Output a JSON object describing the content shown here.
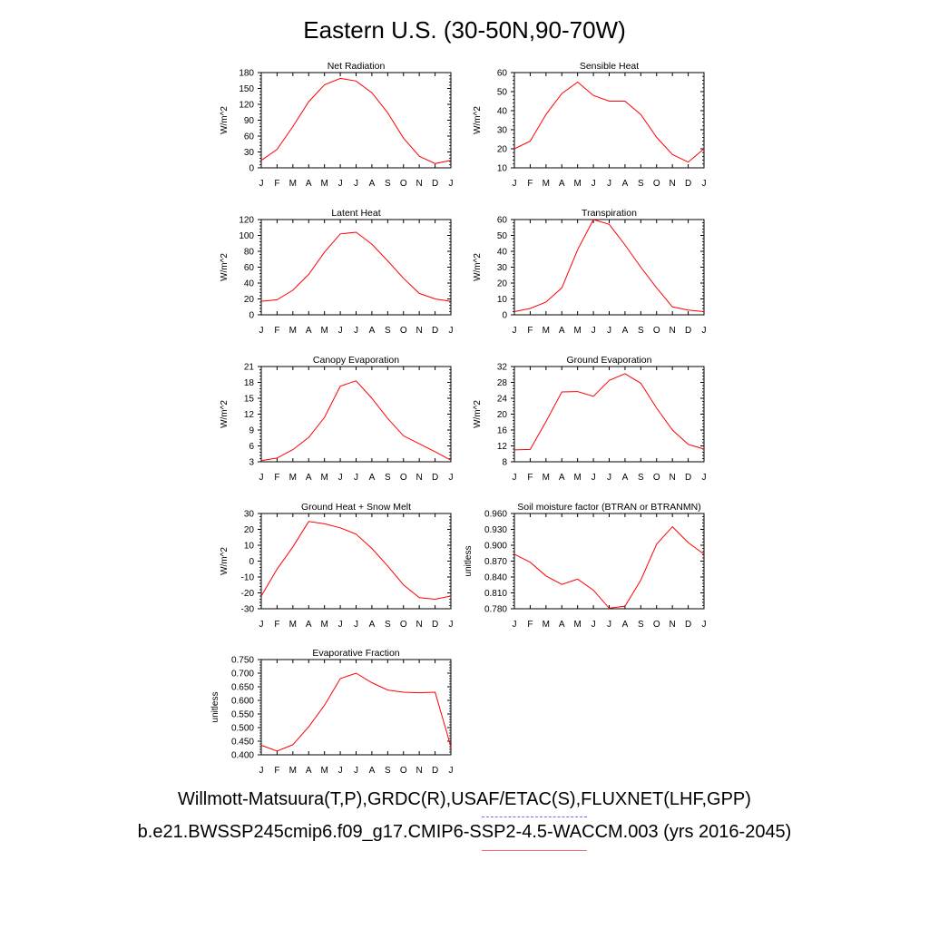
{
  "page": {
    "title": "Eastern U.S. (30-50N,90-70W)",
    "footer_obs": "Willmott-Matsuura(T,P),GRDC(R),USAF/ETAC(S),FLUXNET(LHF,GPP)",
    "footer_model": "b.e21.BWSSP245cmip6.f09_g17.CMIP6-SSP2-4.5-WACCM.003 (yrs 2016-2045)",
    "obs_line_color": "#6b6bff",
    "model_line_color": "#ff6b6b",
    "series_color": "#ff0000"
  },
  "chart_data": [
    {
      "id": "net-radiation",
      "type": "line",
      "title": "Net Radiation",
      "ylabel": "W/m^2",
      "x": [
        "J",
        "F",
        "M",
        "A",
        "M",
        "J",
        "J",
        "A",
        "S",
        "O",
        "N",
        "D",
        "J"
      ],
      "ylim": [
        0,
        180
      ],
      "yticks": [
        "0",
        "30",
        "60",
        "90",
        "120",
        "150",
        "180"
      ],
      "values": [
        14,
        35,
        78,
        125,
        157,
        169,
        164,
        142,
        104,
        56,
        22,
        8,
        14
      ]
    },
    {
      "id": "sensible-heat",
      "type": "line",
      "title": "Sensible Heat",
      "ylabel": "W/m^2",
      "x": [
        "J",
        "F",
        "M",
        "A",
        "M",
        "J",
        "J",
        "A",
        "S",
        "O",
        "N",
        "D",
        "J"
      ],
      "ylim": [
        10,
        60
      ],
      "yticks": [
        "10",
        "20",
        "30",
        "40",
        "50",
        "60"
      ],
      "values": [
        20,
        24,
        38,
        49,
        55,
        48,
        45,
        45,
        38,
        26,
        17,
        13,
        20
      ]
    },
    {
      "id": "latent-heat",
      "type": "line",
      "title": "Latent Heat",
      "ylabel": "W/m^2",
      "x": [
        "J",
        "F",
        "M",
        "A",
        "M",
        "J",
        "J",
        "A",
        "S",
        "O",
        "N",
        "D",
        "J"
      ],
      "ylim": [
        0,
        120
      ],
      "yticks": [
        "0",
        "20",
        "40",
        "60",
        "80",
        "100",
        "120"
      ],
      "values": [
        17,
        19,
        31,
        51,
        79,
        102,
        104,
        89,
        68,
        46,
        27,
        20,
        17
      ]
    },
    {
      "id": "transpiration",
      "type": "line",
      "title": "Transpiration",
      "ylabel": "W/m^2",
      "x": [
        "J",
        "F",
        "M",
        "A",
        "M",
        "J",
        "J",
        "A",
        "S",
        "O",
        "N",
        "D",
        "J"
      ],
      "ylim": [
        0,
        60
      ],
      "yticks": [
        "0",
        "10",
        "20",
        "30",
        "40",
        "50",
        "60"
      ],
      "values": [
        2,
        4,
        8,
        17,
        41,
        60,
        57,
        44,
        30,
        17,
        5,
        3,
        2
      ]
    },
    {
      "id": "canopy-evaporation",
      "type": "line",
      "title": "Canopy Evaporation",
      "ylabel": "W/m^2",
      "x": [
        "J",
        "F",
        "M",
        "A",
        "M",
        "J",
        "J",
        "A",
        "S",
        "O",
        "N",
        "D",
        "J"
      ],
      "ylim": [
        3,
        21
      ],
      "yticks": [
        "3",
        "6",
        "9",
        "12",
        "15",
        "18",
        "21"
      ],
      "values": [
        3.2,
        3.7,
        5.3,
        7.6,
        11.4,
        17.3,
        18.3,
        15.0,
        11.2,
        7.9,
        6.4,
        4.9,
        3.3
      ]
    },
    {
      "id": "ground-evaporation",
      "type": "line",
      "title": "Ground Evaporation",
      "ylabel": "W/m^2",
      "x": [
        "J",
        "F",
        "M",
        "A",
        "M",
        "J",
        "J",
        "A",
        "S",
        "O",
        "N",
        "D",
        "J"
      ],
      "ylim": [
        8,
        32
      ],
      "yticks": [
        "8",
        "12",
        "16",
        "20",
        "24",
        "28",
        "32"
      ],
      "values": [
        11.0,
        11.1,
        18.1,
        25.6,
        25.7,
        24.5,
        28.5,
        30.2,
        27.8,
        21.5,
        16.0,
        12.4,
        11.2
      ]
    },
    {
      "id": "ground-heat-snow-melt",
      "type": "line",
      "title": "Ground Heat + Snow Melt",
      "ylabel": "W/m^2",
      "x": [
        "J",
        "F",
        "M",
        "A",
        "M",
        "J",
        "J",
        "A",
        "S",
        "O",
        "N",
        "D",
        "J"
      ],
      "ylim": [
        -30,
        30
      ],
      "yticks": [
        "-30",
        "-20",
        "-10",
        "0",
        "10",
        "20",
        "30"
      ],
      "values": [
        -22,
        -5,
        9,
        25,
        23.5,
        21,
        17,
        8,
        -3,
        -15,
        -23,
        -24,
        -22
      ]
    },
    {
      "id": "soil-moisture-factor",
      "type": "line",
      "title": "Soil moisture factor (BTRAN or BTRANMN)",
      "ylabel": "unitless",
      "x": [
        "J",
        "F",
        "M",
        "A",
        "M",
        "J",
        "J",
        "A",
        "S",
        "O",
        "N",
        "D",
        "J"
      ],
      "ylim": [
        0.78,
        0.96
      ],
      "yticks": [
        "0.780",
        "0.810",
        "0.840",
        "0.870",
        "0.900",
        "0.930",
        "0.960"
      ],
      "values": [
        0.883,
        0.868,
        0.842,
        0.826,
        0.836,
        0.815,
        0.781,
        0.785,
        0.834,
        0.902,
        0.935,
        0.905,
        0.883
      ]
    },
    {
      "id": "evaporative-fraction",
      "type": "line",
      "title": "Evaporative Fraction",
      "ylabel": "unitless",
      "x": [
        "J",
        "F",
        "M",
        "A",
        "M",
        "J",
        "J",
        "A",
        "S",
        "O",
        "N",
        "D",
        "J"
      ],
      "ylim": [
        0.4,
        0.75
      ],
      "yticks": [
        "0.400",
        "0.450",
        "0.500",
        "0.550",
        "0.600",
        "0.650",
        "0.700",
        "0.750"
      ],
      "values": [
        0.435,
        0.414,
        0.437,
        0.503,
        0.582,
        0.68,
        0.7,
        0.665,
        0.638,
        0.63,
        0.628,
        0.63,
        0.43
      ]
    }
  ]
}
